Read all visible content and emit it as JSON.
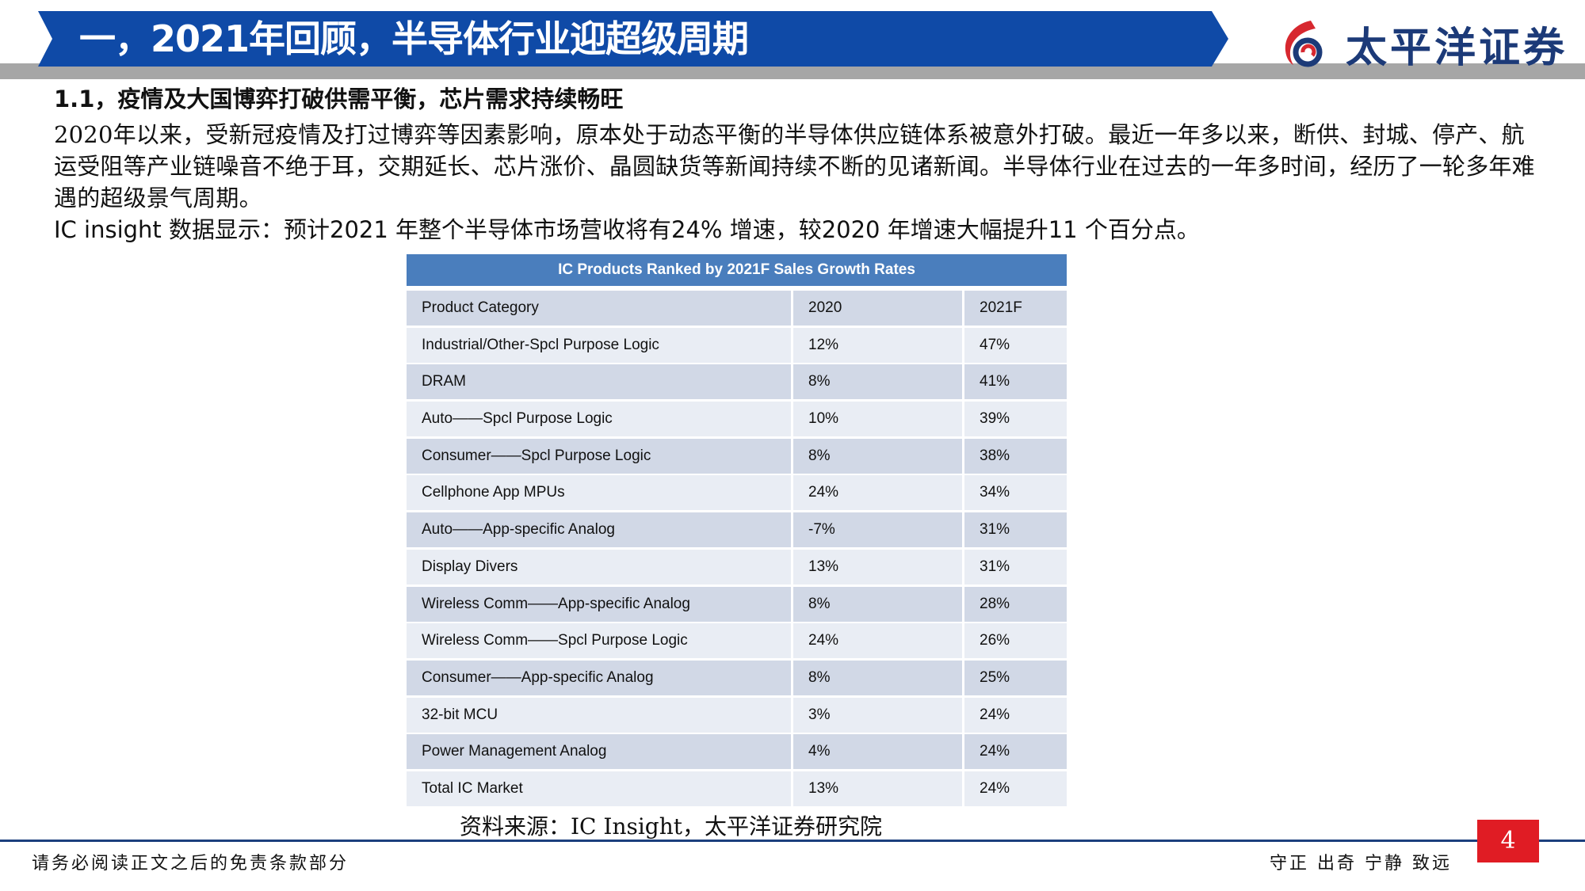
{
  "header": {
    "title": "一，2021年回顾，半导体行业迎超级周期",
    "logo_text": "太平洋证券",
    "logo_icon": "pacific-securities-logo-icon"
  },
  "section": {
    "heading": "1.1，疫情及大国博弈打破供需平衡，芯片需求持续畅旺",
    "paragraph": "2020年以来，受新冠疫情及打过博弈等因素影响，原本处于动态平衡的半导体供应链体系被意外打破。最近一年多以来，断供、封城、停产、航运受阻等产业链噪音不绝于耳，交期延长、芯片涨价、晶圆缺货等新闻持续不断的见诸新闻。半导体行业在过去的一年多时间，经历了一轮多年难遇的超级景气周期。",
    "paragraph2": "IC insight 数据显示：预计2021 年整个半导体市场营收将有24% 增速，较2020 年增速大幅提升11 个百分点。"
  },
  "table": {
    "title": "IC Products Ranked by 2021F Sales Growth Rates",
    "headers": [
      "Product Category",
      "2020",
      "2021F"
    ],
    "rows": [
      [
        "Industrial/Other-Spcl Purpose Logic",
        "12%",
        "47%"
      ],
      [
        "DRAM",
        "8%",
        "41%"
      ],
      [
        "Auto——Spcl Purpose Logic",
        "10%",
        "39%"
      ],
      [
        "Consumer——Spcl Purpose Logic",
        "8%",
        "38%"
      ],
      [
        "Cellphone App MPUs",
        "24%",
        "34%"
      ],
      [
        "Auto——App-specific Analog",
        "-7%",
        "31%"
      ],
      [
        "Display Divers",
        "13%",
        "31%"
      ],
      [
        "Wireless Comm——App-specific Analog",
        "8%",
        "28%"
      ],
      [
        "Wireless Comm——Spcl Purpose Logic",
        "24%",
        "26%"
      ],
      [
        "Consumer——App-specific Analog",
        "8%",
        "25%"
      ],
      [
        "32-bit MCU",
        "3%",
        "24%"
      ],
      [
        "Power Management Analog",
        "4%",
        "24%"
      ],
      [
        "Total IC Market",
        "13%",
        "24%"
      ]
    ],
    "source": "资料来源：IC Insight，太平洋证券研究院"
  },
  "footer": {
    "disclaimer": "请务必阅读正文之后的免责条款部分",
    "motto": "守正 出奇 宁静 致远",
    "page_number": "4"
  },
  "colors": {
    "title_bar": "#0f4aa7",
    "table_header": "#4a7ebd",
    "row_dark": "#d1d8e6",
    "row_light": "#e9edf4",
    "page_box": "#e01c24",
    "logo_red": "#d7282f",
    "logo_navy": "#1c3a78"
  }
}
